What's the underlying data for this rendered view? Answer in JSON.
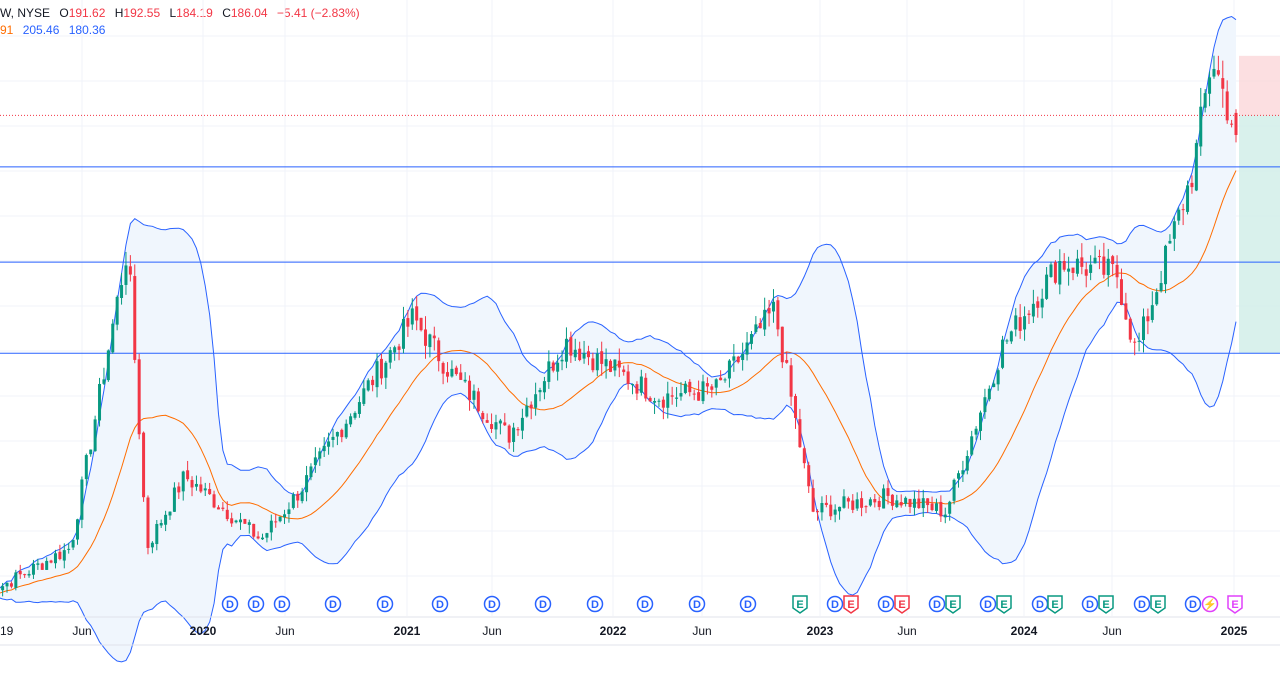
{
  "legend": {
    "symbol": "W, NYSE",
    "open_label": "O",
    "open_value": "191.62",
    "high_label": "H",
    "high_value": "192.55",
    "low_label": "L",
    "low_value": "184.19",
    "close_label": "C",
    "close_value": "186.04",
    "change": "−5.41 (−2.83%)",
    "bb_prefix": "91",
    "bb_upper": "205.46",
    "bb_lower": "180.36"
  },
  "colors": {
    "up": "#089981",
    "down": "#f23645",
    "basis": "#ff6d00",
    "band": "#2962ff",
    "band_fill": "#f0f6fd",
    "hline": "#2962ff",
    "dividend": "#2962ff",
    "earnings_pos": "#089981",
    "earnings_neg": "#f23645",
    "split": "#e040fb",
    "grid": "#f0f3fa",
    "risk_zone": "#fbd7d9",
    "reward_zone": "#d5f0ea"
  },
  "chart_data": {
    "type": "candlestick",
    "interval": "weekly",
    "title": "",
    "x_axis": {
      "type": "date",
      "tick_labels": [
        "19",
        "Jun",
        "2020",
        "Jun",
        "2021",
        "Jun",
        "2022",
        "Jun",
        "2023",
        "Jun",
        "2024",
        "Jun",
        "2025"
      ],
      "year_ticks_bold": true
    },
    "y_axis": {
      "visible": false,
      "approx_range": [
        65,
        210
      ]
    },
    "indicators": {
      "bollinger_bands": {
        "upper_last": 205.46,
        "lower_last": 180.36,
        "basis_color": "#ff6d00",
        "band_color": "#2962ff"
      }
    },
    "last_bar": {
      "open": 191.62,
      "high": 192.55,
      "low": 184.19,
      "close": 186.04,
      "change": -5.41,
      "change_pct": -2.83
    },
    "horizontal_levels": [
      178,
      154,
      131
    ],
    "position_tool": {
      "entry": 191,
      "stop": 206,
      "target": 131
    },
    "key_prices": [
      {
        "date": "2019-11",
        "close": 82
      },
      {
        "date": "2020-02",
        "close": 158
      },
      {
        "date": "2020-03",
        "close": 82
      },
      {
        "date": "2020-05",
        "close": 100
      },
      {
        "date": "2020-09",
        "close": 84
      },
      {
        "date": "2020-11",
        "close": 96
      },
      {
        "date": "2021-05",
        "close": 140
      },
      {
        "date": "2021-07",
        "close": 126
      },
      {
        "date": "2021-10",
        "close": 110
      },
      {
        "date": "2022-01",
        "close": 134
      },
      {
        "date": "2022-06",
        "close": 120
      },
      {
        "date": "2022-09",
        "close": 122
      },
      {
        "date": "2022-12",
        "close": 142
      },
      {
        "date": "2023-02",
        "close": 91
      },
      {
        "date": "2023-06",
        "close": 95
      },
      {
        "date": "2023-09",
        "close": 91
      },
      {
        "date": "2023-12",
        "close": 133
      },
      {
        "date": "2024-03",
        "close": 154
      },
      {
        "date": "2024-06",
        "close": 151
      },
      {
        "date": "2024-07",
        "close": 131
      },
      {
        "date": "2024-10",
        "close": 177
      },
      {
        "date": "2024-11",
        "close": 206
      },
      {
        "date": "2024-12",
        "close": 186
      }
    ],
    "event_markers": [
      {
        "label": "D",
        "kind": "dividend"
      },
      {
        "label": "D",
        "kind": "dividend"
      },
      {
        "label": "D",
        "kind": "dividend"
      },
      {
        "label": "D",
        "kind": "dividend"
      },
      {
        "label": "D",
        "kind": "dividend"
      },
      {
        "label": "D",
        "kind": "dividend"
      },
      {
        "label": "D",
        "kind": "dividend"
      },
      {
        "label": "D",
        "kind": "dividend"
      },
      {
        "label": "D",
        "kind": "dividend"
      },
      {
        "label": "D",
        "kind": "dividend"
      },
      {
        "label": "D",
        "kind": "dividend"
      },
      {
        "label": "D",
        "kind": "dividend"
      },
      {
        "label": "E",
        "kind": "earnings_pos"
      },
      {
        "label": "D",
        "kind": "dividend"
      },
      {
        "label": "E",
        "kind": "earnings_neg"
      },
      {
        "label": "D",
        "kind": "dividend"
      },
      {
        "label": "E",
        "kind": "earnings_neg"
      },
      {
        "label": "D",
        "kind": "dividend"
      },
      {
        "label": "E",
        "kind": "earnings_pos"
      },
      {
        "label": "D",
        "kind": "dividend"
      },
      {
        "label": "E",
        "kind": "earnings_pos"
      },
      {
        "label": "D",
        "kind": "dividend"
      },
      {
        "label": "E",
        "kind": "earnings_pos"
      },
      {
        "label": "D",
        "kind": "dividend"
      },
      {
        "label": "E",
        "kind": "earnings_pos"
      },
      {
        "label": "D",
        "kind": "dividend"
      },
      {
        "label": "E",
        "kind": "earnings_pos"
      },
      {
        "label": "D",
        "kind": "dividend"
      },
      {
        "label": "⚡",
        "kind": "split"
      },
      {
        "label": "E",
        "kind": "upcoming"
      }
    ]
  }
}
